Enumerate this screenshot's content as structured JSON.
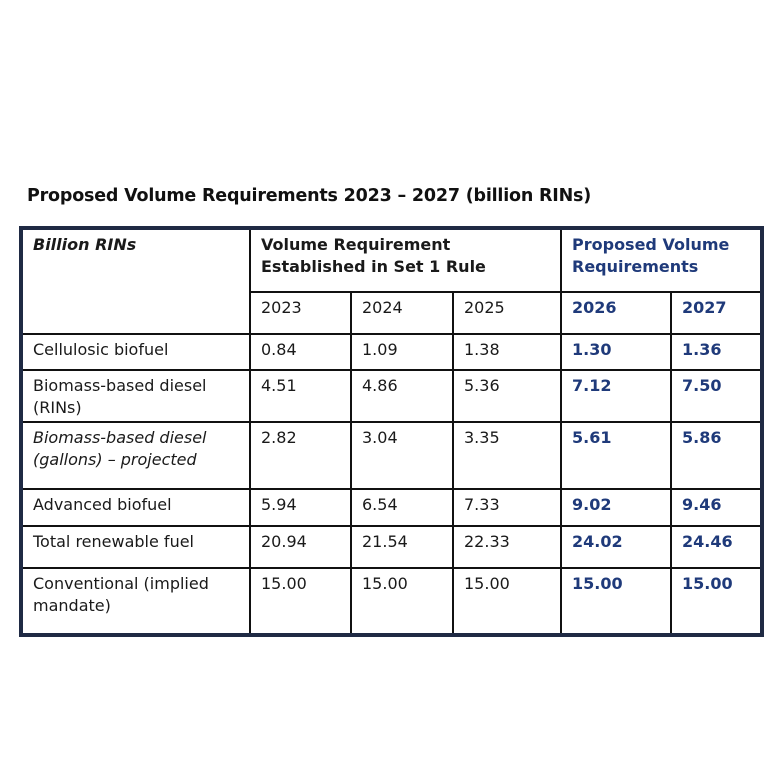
{
  "title": "Proposed Volume Requirements 2023 – 2027 (billion RINs)",
  "table": {
    "corner_label": "Billion RINs",
    "group_established": "Volume Requirement Established in Set 1 Rule",
    "group_proposed": "Proposed Volume Requirements",
    "years": [
      "2023",
      "2024",
      "2025",
      "2026",
      "2027"
    ],
    "rows": [
      {
        "label": "Cellulosic biofuel",
        "italic": false,
        "values": [
          "0.84",
          "1.09",
          "1.38",
          "1.30",
          "1.36"
        ]
      },
      {
        "label": "Biomass-based diesel (RINs)",
        "italic": false,
        "values": [
          "4.51",
          "4.86",
          "5.36",
          "7.12",
          "7.50"
        ]
      },
      {
        "label": "Biomass-based diesel (gallons) – projected",
        "italic": true,
        "values": [
          "2.82",
          "3.04",
          "3.35",
          "5.61",
          "5.86"
        ]
      },
      {
        "label": "Advanced biofuel",
        "italic": false,
        "values": [
          "5.94",
          "6.54",
          "7.33",
          "9.02",
          "9.46"
        ]
      },
      {
        "label": "Total renewable fuel",
        "italic": false,
        "values": [
          "20.94",
          "21.54",
          "22.33",
          "24.02",
          "24.46"
        ]
      },
      {
        "label": "Conventional (implied mandate)",
        "italic": false,
        "values": [
          "15.00",
          "15.00",
          "15.00",
          "15.00",
          "15.00"
        ]
      }
    ]
  },
  "colors": {
    "frame": "#1f2a44",
    "proposed_text": "#1f3a7a"
  }
}
